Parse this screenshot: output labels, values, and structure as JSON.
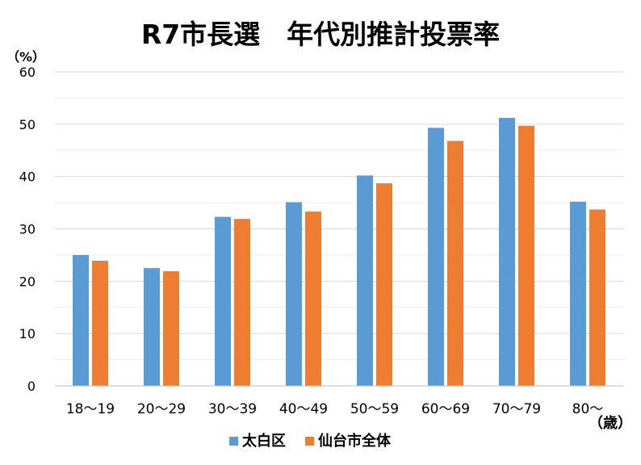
{
  "chart_data": {
    "type": "bar",
    "title": "R7市長選　年代別推計投票率",
    "y_unit_label": "（%）",
    "x_unit_label": "（歳）",
    "categories": [
      "18〜19",
      "20〜29",
      "30〜39",
      "40〜49",
      "50〜59",
      "60〜69",
      "70〜79",
      "80〜"
    ],
    "series": [
      {
        "name": "太白区",
        "color": "#5B9BD5",
        "values": [
          25.0,
          22.5,
          32.3,
          35.1,
          40.2,
          49.3,
          51.2,
          35.2
        ]
      },
      {
        "name": "仙台市全体",
        "color": "#ED7D31",
        "values": [
          23.9,
          21.9,
          31.9,
          33.3,
          38.7,
          46.8,
          49.7,
          33.7
        ]
      }
    ],
    "ylim": [
      0,
      60
    ],
    "yticks": [
      0,
      10,
      20,
      30,
      40,
      50,
      60
    ],
    "grid": true,
    "legend_position": "bottom"
  }
}
